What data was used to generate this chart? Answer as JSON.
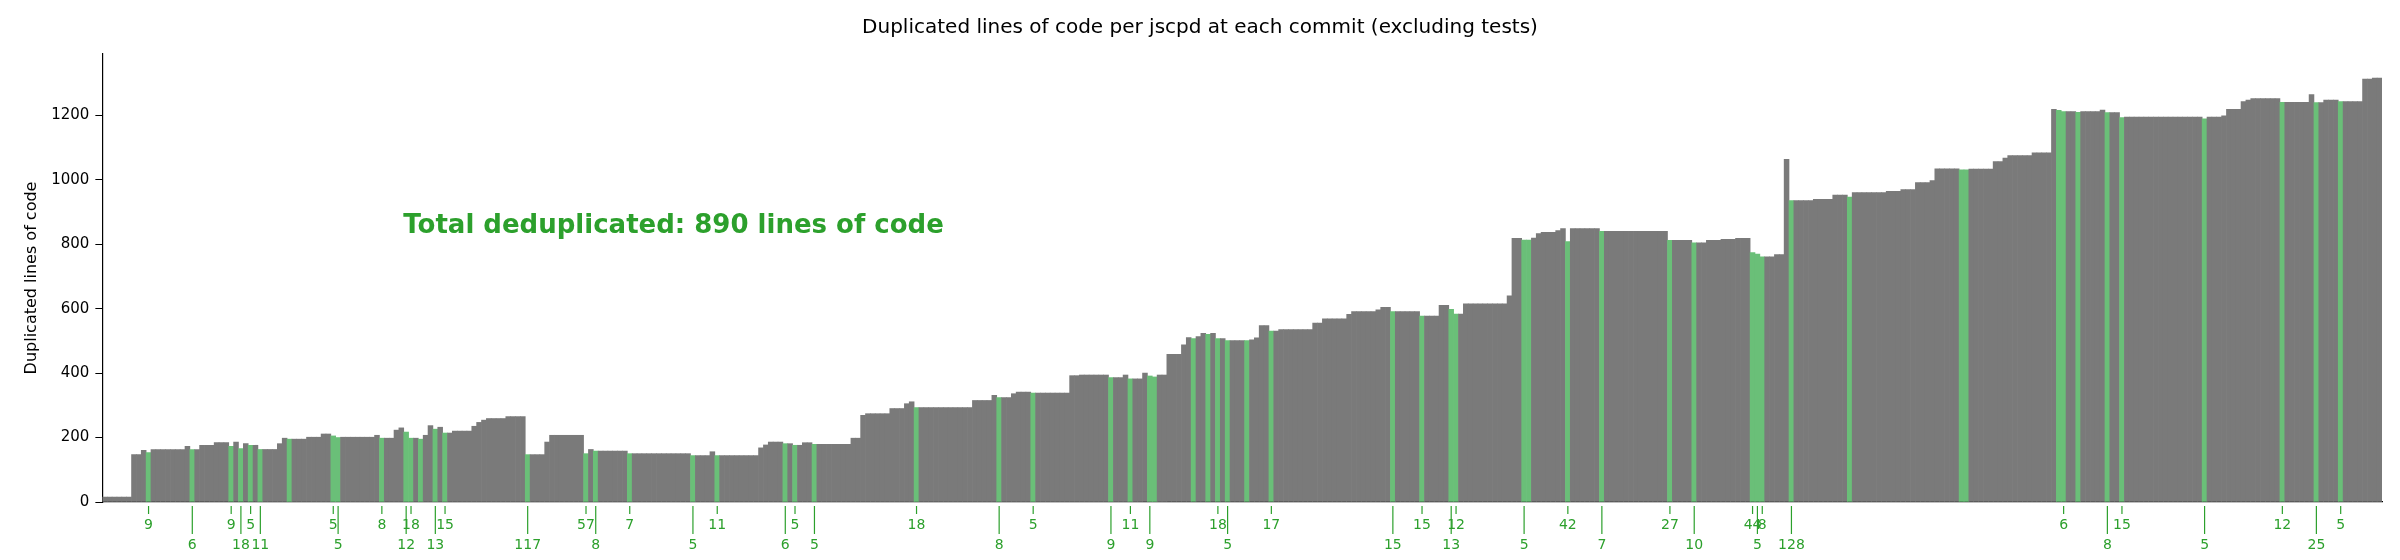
{
  "chart_data": {
    "type": "bar",
    "title": "Duplicated lines of code per jscpd at each commit (excluding tests)",
    "ylabel": "Duplicated lines of code",
    "ylim": [
      0,
      1390
    ],
    "yticks": [
      0,
      200,
      400,
      600,
      800,
      1000,
      1200
    ],
    "annotations": [
      "Total deduplicated: 890 lines of code"
    ],
    "categories": [
      null,
      null,
      null,
      null,
      null,
      null,
      null,
      null,
      null,
      "9",
      null,
      null,
      null,
      null,
      null,
      null,
      null,
      null,
      "6",
      null,
      null,
      null,
      null,
      null,
      null,
      null,
      "9",
      null,
      "18",
      null,
      "5",
      null,
      "11",
      null,
      null,
      null,
      null,
      null,
      null,
      null,
      null,
      null,
      null,
      null,
      null,
      null,
      null,
      "5",
      "5",
      null,
      null,
      null,
      null,
      null,
      null,
      null,
      null,
      "8",
      null,
      null,
      null,
      null,
      "12",
      "18",
      null,
      null,
      null,
      null,
      "13",
      null,
      "15",
      null,
      null,
      null,
      null,
      null,
      null,
      null,
      null,
      null,
      null,
      null,
      null,
      null,
      null,
      null,
      null,
      "117",
      null,
      null,
      null,
      null,
      null,
      null,
      null,
      null,
      null,
      null,
      null,
      "57",
      null,
      "8",
      null,
      null,
      null,
      null,
      null,
      null,
      "7",
      null,
      null,
      null,
      null,
      null,
      null,
      null,
      null,
      null,
      null,
      null,
      null,
      "5",
      null,
      null,
      null,
      null,
      "11",
      null,
      null,
      null,
      null,
      null,
      null,
      null,
      null,
      null,
      null,
      null,
      null,
      null,
      "6",
      null,
      "5",
      null,
      null,
      null,
      "5",
      null,
      null,
      null,
      null,
      null,
      null,
      null,
      null,
      null,
      null,
      null,
      null,
      null,
      null,
      null,
      null,
      null,
      null,
      null,
      null,
      "18",
      null,
      null,
      null,
      null,
      null,
      null,
      null,
      null,
      null,
      null,
      null,
      null,
      null,
      null,
      null,
      null,
      "8",
      null,
      null,
      null,
      null,
      null,
      null,
      "5",
      null,
      null,
      null,
      null,
      null,
      null,
      null,
      null,
      null,
      null,
      null,
      null,
      null,
      null,
      null,
      "9",
      null,
      null,
      null,
      "11",
      null,
      null,
      null,
      "9",
      null,
      null,
      null,
      null,
      null,
      null,
      null,
      null,
      null,
      null,
      null,
      null,
      null,
      "18",
      null,
      "5",
      null,
      null,
      null,
      null,
      null,
      null,
      null,
      null,
      "17",
      null,
      null,
      null,
      null,
      null,
      null,
      null,
      null,
      null,
      null,
      null,
      null,
      null,
      null,
      null,
      null,
      null,
      null,
      null,
      null,
      null,
      null,
      null,
      null,
      "15",
      null,
      null,
      null,
      null,
      null,
      "15",
      null,
      null,
      null,
      null,
      null,
      "13",
      "12",
      null,
      null,
      null,
      null,
      null,
      null,
      null,
      null,
      null,
      null,
      null,
      null,
      null,
      "5",
      null,
      null,
      null,
      null,
      null,
      null,
      null,
      null,
      "42",
      null,
      null,
      null,
      null,
      null,
      null,
      "7",
      null,
      null,
      null,
      null,
      null,
      null,
      null,
      null,
      null,
      null,
      null,
      null,
      null,
      "27",
      null,
      null,
      null,
      null,
      "10",
      null,
      null,
      null,
      null,
      null,
      null,
      null,
      null,
      null,
      null,
      null,
      "44",
      "5",
      "8",
      null,
      null,
      null,
      null,
      null,
      "128",
      null,
      null,
      null,
      null,
      null,
      null,
      null,
      null,
      null,
      null,
      null,
      null,
      null,
      null,
      null,
      null,
      null,
      null,
      null,
      null,
      null,
      null,
      null,
      null,
      null,
      null,
      null,
      null,
      null,
      null,
      null,
      null,
      null,
      null,
      null,
      null,
      null,
      null,
      null,
      null,
      null,
      null,
      null,
      null,
      null,
      null,
      null,
      null,
      null,
      null,
      null,
      null,
      null,
      null,
      null,
      "6",
      null,
      null,
      null,
      null,
      null,
      null,
      null,
      null,
      "8",
      null,
      null,
      "15",
      null,
      null,
      null,
      null,
      null,
      null,
      null,
      null,
      null,
      null,
      null,
      null,
      null,
      null,
      null,
      null,
      "5",
      null,
      null,
      null,
      null,
      null,
      null,
      null,
      null,
      null,
      null,
      null,
      null,
      null,
      null,
      null,
      "12",
      null,
      null,
      null,
      null,
      null,
      null,
      "25",
      null,
      null,
      null,
      null,
      "5",
      null,
      null,
      null,
      null,
      null,
      null,
      null,
      null
    ],
    "values": [
      15,
      15,
      15,
      15,
      15,
      15,
      147,
      147,
      160,
      153,
      163,
      163,
      163,
      163,
      163,
      163,
      163,
      173,
      163,
      163,
      176,
      176,
      176,
      184,
      184,
      184,
      173,
      186,
      166,
      181,
      176,
      176,
      163,
      163,
      163,
      163,
      181,
      198,
      195,
      195,
      195,
      195,
      201,
      201,
      201,
      211,
      211,
      205,
      200,
      201,
      201,
      201,
      201,
      201,
      201,
      201,
      207,
      198,
      198,
      198,
      223,
      230,
      217,
      198,
      198,
      195,
      207,
      237,
      226,
      232,
      214,
      214,
      220,
      220,
      220,
      220,
      235,
      247,
      254,
      259,
      259,
      259,
      259,
      265,
      265,
      265,
      265,
      147,
      147,
      147,
      147,
      186,
      207,
      207,
      207,
      207,
      207,
      207,
      207,
      150,
      163,
      158,
      158,
      158,
      158,
      158,
      158,
      158,
      150,
      150,
      150,
      150,
      150,
      150,
      150,
      150,
      150,
      150,
      150,
      150,
      150,
      144,
      144,
      144,
      144,
      156,
      144,
      144,
      144,
      144,
      144,
      144,
      144,
      144,
      144,
      168,
      177,
      186,
      186,
      186,
      181,
      181,
      176,
      176,
      184,
      184,
      179,
      179,
      179,
      179,
      179,
      179,
      179,
      179,
      198,
      198,
      269,
      274,
      274,
      274,
      274,
      274,
      290,
      290,
      290,
      305,
      311,
      293,
      293,
      293,
      293,
      293,
      293,
      293,
      293,
      293,
      293,
      293,
      293,
      315,
      315,
      315,
      315,
      331,
      324,
      324,
      324,
      336,
      341,
      341,
      341,
      338,
      338,
      338,
      338,
      338,
      338,
      338,
      338,
      392,
      392,
      394,
      394,
      394,
      394,
      394,
      394,
      386,
      386,
      386,
      394,
      382,
      382,
      382,
      400,
      391,
      388,
      394,
      394,
      458,
      458,
      458,
      488,
      510,
      507,
      513,
      523,
      520,
      523,
      507,
      507,
      501,
      501,
      501,
      501,
      501,
      503,
      509,
      547,
      547,
      530,
      530,
      535,
      535,
      535,
      535,
      535,
      535,
      535,
      555,
      555,
      568,
      568,
      568,
      568,
      568,
      582,
      591,
      591,
      591,
      591,
      591,
      596,
      604,
      604,
      591,
      591,
      591,
      591,
      591,
      591,
      577,
      577,
      577,
      577,
      610,
      610,
      598,
      583,
      583,
      615,
      615,
      615,
      615,
      615,
      615,
      615,
      615,
      615,
      640,
      818,
      818,
      813,
      813,
      819,
      833,
      837,
      837,
      837,
      842,
      848,
      808,
      848,
      848,
      848,
      848,
      848,
      848,
      840,
      840,
      840,
      840,
      840,
      840,
      840,
      840,
      840,
      840,
      840,
      840,
      840,
      840,
      812,
      812,
      812,
      812,
      812,
      804,
      804,
      804,
      812,
      812,
      812,
      815,
      815,
      815,
      818,
      818,
      818,
      774,
      769,
      761,
      761,
      761,
      768,
      768,
      1063,
      935,
      935,
      935,
      935,
      935,
      939,
      939,
      939,
      939,
      952,
      952,
      952,
      946,
      960,
      960,
      960,
      960,
      960,
      960,
      960,
      964,
      964,
      964,
      969,
      969,
      969,
      991,
      991,
      991,
      997,
      1034,
      1034,
      1034,
      1034,
      1034,
      1031,
      1031,
      1033,
      1033,
      1033,
      1033,
      1033,
      1056,
      1056,
      1067,
      1075,
      1075,
      1075,
      1075,
      1075,
      1083,
      1083,
      1083,
      1083,
      1218,
      1215,
      1211,
      1211,
      1211,
      1209,
      1211,
      1211,
      1211,
      1211,
      1216,
      1208,
      1208,
      1208,
      1193,
      1194,
      1194,
      1194,
      1194,
      1194,
      1194,
      1194,
      1194,
      1194,
      1194,
      1194,
      1194,
      1194,
      1194,
      1194,
      1194,
      1189,
      1194,
      1194,
      1194,
      1198,
      1218,
      1218,
      1218,
      1242,
      1247,
      1252,
      1252,
      1252,
      1252,
      1252,
      1252,
      1240,
      1240,
      1240,
      1240,
      1240,
      1240,
      1264,
      1239,
      1239,
      1247,
      1247,
      1247,
      1242,
      1242,
      1242,
      1242,
      1242,
      1312,
      1312,
      1315,
      1315
    ],
    "colors": [
      "#7a7a7a",
      "#7a7a7a",
      "#7a7a7a",
      "#7a7a7a",
      "#7a7a7a",
      "#7a7a7a",
      "#7a7a7a",
      "#7a7a7a",
      "#7a7a7a",
      "#6abf78",
      "#7a7a7a",
      "#7a7a7a",
      "#7a7a7a",
      "#7a7a7a",
      "#7a7a7a",
      "#7a7a7a",
      "#7a7a7a",
      "#7a7a7a",
      "#6abf78",
      "#7a7a7a",
      "#7a7a7a",
      "#7a7a7a",
      "#7a7a7a",
      "#7a7a7a",
      "#7a7a7a",
      "#7a7a7a",
      "#6abf78",
      "#7a7a7a",
      "#6abf78",
      "#7a7a7a",
      "#6abf78",
      "#7a7a7a",
      "#6abf78",
      "#7a7a7a",
      "#7a7a7a",
      "#7a7a7a",
      "#7a7a7a",
      "#7a7a7a",
      "#6abf78",
      "#7a7a7a",
      "#7a7a7a",
      "#7a7a7a",
      "#7a7a7a",
      "#7a7a7a",
      "#7a7a7a",
      "#7a7a7a",
      "#7a7a7a",
      "#6abf78",
      "#6abf78",
      "#7a7a7a",
      "#7a7a7a",
      "#7a7a7a",
      "#7a7a7a",
      "#7a7a7a",
      "#7a7a7a",
      "#7a7a7a",
      "#7a7a7a",
      "#6abf78",
      "#7a7a7a",
      "#7a7a7a",
      "#7a7a7a",
      "#7a7a7a",
      "#6abf78",
      "#6abf78",
      "#7a7a7a",
      "#6abf78",
      "#7a7a7a",
      "#7a7a7a",
      "#6abf78",
      "#7a7a7a",
      "#6abf78",
      "#7a7a7a",
      "#7a7a7a",
      "#7a7a7a",
      "#7a7a7a",
      "#7a7a7a",
      "#7a7a7a",
      "#7a7a7a",
      "#7a7a7a",
      "#7a7a7a",
      "#7a7a7a",
      "#7a7a7a",
      "#7a7a7a",
      "#7a7a7a",
      "#7a7a7a",
      "#7a7a7a",
      "#7a7a7a",
      "#6abf78",
      "#7a7a7a",
      "#7a7a7a",
      "#7a7a7a",
      "#7a7a7a",
      "#7a7a7a",
      "#7a7a7a",
      "#7a7a7a",
      "#7a7a7a",
      "#7a7a7a",
      "#7a7a7a",
      "#7a7a7a",
      "#6abf78",
      "#7a7a7a",
      "#6abf78",
      "#7a7a7a",
      "#7a7a7a",
      "#7a7a7a",
      "#7a7a7a",
      "#7a7a7a",
      "#7a7a7a",
      "#6abf78",
      "#7a7a7a",
      "#7a7a7a",
      "#7a7a7a",
      "#7a7a7a",
      "#7a7a7a",
      "#7a7a7a",
      "#7a7a7a",
      "#7a7a7a",
      "#7a7a7a",
      "#7a7a7a",
      "#7a7a7a",
      "#7a7a7a",
      "#6abf78",
      "#7a7a7a",
      "#7a7a7a",
      "#7a7a7a",
      "#7a7a7a",
      "#6abf78",
      "#7a7a7a",
      "#7a7a7a",
      "#7a7a7a",
      "#7a7a7a",
      "#7a7a7a",
      "#7a7a7a",
      "#7a7a7a",
      "#7a7a7a",
      "#7a7a7a",
      "#7a7a7a",
      "#7a7a7a",
      "#7a7a7a",
      "#7a7a7a",
      "#6abf78",
      "#7a7a7a",
      "#6abf78",
      "#7a7a7a",
      "#7a7a7a",
      "#7a7a7a",
      "#6abf78",
      "#7a7a7a",
      "#7a7a7a",
      "#7a7a7a",
      "#7a7a7a",
      "#7a7a7a",
      "#7a7a7a",
      "#7a7a7a",
      "#7a7a7a",
      "#7a7a7a",
      "#7a7a7a",
      "#7a7a7a",
      "#7a7a7a",
      "#7a7a7a",
      "#7a7a7a",
      "#7a7a7a",
      "#7a7a7a",
      "#7a7a7a",
      "#7a7a7a",
      "#7a7a7a",
      "#7a7a7a",
      "#6abf78",
      "#7a7a7a",
      "#7a7a7a",
      "#7a7a7a",
      "#7a7a7a",
      "#7a7a7a",
      "#7a7a7a",
      "#7a7a7a",
      "#7a7a7a",
      "#7a7a7a",
      "#7a7a7a",
      "#7a7a7a",
      "#7a7a7a",
      "#7a7a7a",
      "#7a7a7a",
      "#7a7a7a",
      "#7a7a7a",
      "#6abf78",
      "#7a7a7a",
      "#7a7a7a",
      "#7a7a7a",
      "#7a7a7a",
      "#7a7a7a",
      "#7a7a7a",
      "#6abf78",
      "#7a7a7a",
      "#7a7a7a",
      "#7a7a7a",
      "#7a7a7a",
      "#7a7a7a",
      "#7a7a7a",
      "#7a7a7a",
      "#7a7a7a",
      "#7a7a7a",
      "#7a7a7a",
      "#7a7a7a",
      "#7a7a7a",
      "#7a7a7a",
      "#7a7a7a",
      "#7a7a7a",
      "#6abf78",
      "#7a7a7a",
      "#7a7a7a",
      "#7a7a7a",
      "#6abf78",
      "#7a7a7a",
      "#7a7a7a",
      "#7a7a7a",
      "#6abf78",
      "#6abf78",
      "#7a7a7a",
      "#7a7a7a",
      "#7a7a7a",
      "#7a7a7a",
      "#7a7a7a",
      "#7a7a7a",
      "#7a7a7a",
      "#6abf78",
      "#7a7a7a",
      "#7a7a7a",
      "#6abf78",
      "#7a7a7a",
      "#6abf78",
      "#7a7a7a",
      "#6abf78",
      "#7a7a7a",
      "#7a7a7a",
      "#7a7a7a",
      "#6abf78",
      "#7a7a7a",
      "#7a7a7a",
      "#7a7a7a",
      "#7a7a7a",
      "#6abf78",
      "#7a7a7a",
      "#7a7a7a",
      "#7a7a7a",
      "#7a7a7a",
      "#7a7a7a",
      "#7a7a7a",
      "#7a7a7a",
      "#7a7a7a",
      "#7a7a7a",
      "#7a7a7a",
      "#7a7a7a",
      "#7a7a7a",
      "#7a7a7a",
      "#7a7a7a",
      "#7a7a7a",
      "#7a7a7a",
      "#7a7a7a",
      "#7a7a7a",
      "#7a7a7a",
      "#7a7a7a",
      "#7a7a7a",
      "#7a7a7a",
      "#7a7a7a",
      "#7a7a7a",
      "#6abf78",
      "#7a7a7a",
      "#7a7a7a",
      "#7a7a7a",
      "#7a7a7a",
      "#7a7a7a",
      "#6abf78",
      "#7a7a7a",
      "#7a7a7a",
      "#7a7a7a",
      "#7a7a7a",
      "#7a7a7a",
      "#6abf78",
      "#6abf78",
      "#7a7a7a",
      "#7a7a7a",
      "#7a7a7a",
      "#7a7a7a",
      "#7a7a7a",
      "#7a7a7a",
      "#7a7a7a",
      "#7a7a7a",
      "#7a7a7a",
      "#7a7a7a",
      "#7a7a7a",
      "#7a7a7a",
      "#7a7a7a",
      "#6abf78",
      "#6abf78",
      "#7a7a7a",
      "#7a7a7a",
      "#7a7a7a",
      "#7a7a7a",
      "#7a7a7a",
      "#7a7a7a",
      "#7a7a7a",
      "#6abf78",
      "#7a7a7a",
      "#7a7a7a",
      "#7a7a7a",
      "#7a7a7a",
      "#7a7a7a",
      "#7a7a7a",
      "#6abf78",
      "#7a7a7a",
      "#7a7a7a",
      "#7a7a7a",
      "#7a7a7a",
      "#7a7a7a",
      "#7a7a7a",
      "#7a7a7a",
      "#7a7a7a",
      "#7a7a7a",
      "#7a7a7a",
      "#7a7a7a",
      "#7a7a7a",
      "#7a7a7a",
      "#6abf78",
      "#7a7a7a",
      "#7a7a7a",
      "#7a7a7a",
      "#7a7a7a",
      "#6abf78",
      "#7a7a7a",
      "#7a7a7a",
      "#7a7a7a",
      "#7a7a7a",
      "#7a7a7a",
      "#7a7a7a",
      "#7a7a7a",
      "#7a7a7a",
      "#7a7a7a",
      "#7a7a7a",
      "#7a7a7a",
      "#6abf78",
      "#6abf78",
      "#6abf78",
      "#7a7a7a",
      "#7a7a7a",
      "#7a7a7a",
      "#7a7a7a",
      "#7a7a7a",
      "#6abf78",
      "#7a7a7a",
      "#7a7a7a",
      "#7a7a7a",
      "#7a7a7a",
      "#7a7a7a",
      "#7a7a7a",
      "#7a7a7a",
      "#7a7a7a",
      "#7a7a7a",
      "#7a7a7a",
      "#7a7a7a",
      "#6abf78",
      "#7a7a7a",
      "#7a7a7a",
      "#7a7a7a",
      "#7a7a7a",
      "#7a7a7a",
      "#7a7a7a",
      "#7a7a7a",
      "#7a7a7a",
      "#7a7a7a",
      "#7a7a7a",
      "#7a7a7a",
      "#7a7a7a",
      "#7a7a7a",
      "#7a7a7a",
      "#7a7a7a",
      "#7a7a7a",
      "#7a7a7a",
      "#7a7a7a",
      "#7a7a7a",
      "#7a7a7a",
      "#7a7a7a",
      "#7a7a7a",
      "#6abf78",
      "#6abf78",
      "#7a7a7a",
      "#7a7a7a",
      "#7a7a7a",
      "#7a7a7a",
      "#7a7a7a",
      "#7a7a7a",
      "#7a7a7a",
      "#7a7a7a",
      "#7a7a7a",
      "#7a7a7a",
      "#7a7a7a",
      "#7a7a7a",
      "#7a7a7a",
      "#7a7a7a",
      "#7a7a7a",
      "#7a7a7a",
      "#7a7a7a",
      "#7a7a7a",
      "#6abf78",
      "#6abf78",
      "#7a7a7a",
      "#7a7a7a",
      "#6abf78",
      "#7a7a7a",
      "#7a7a7a",
      "#7a7a7a",
      "#7a7a7a",
      "#7a7a7a",
      "#6abf78",
      "#7a7a7a",
      "#7a7a7a",
      "#6abf78",
      "#7a7a7a",
      "#7a7a7a",
      "#7a7a7a",
      "#7a7a7a",
      "#7a7a7a",
      "#7a7a7a",
      "#7a7a7a",
      "#7a7a7a",
      "#7a7a7a",
      "#7a7a7a",
      "#7a7a7a",
      "#7a7a7a",
      "#7a7a7a",
      "#7a7a7a",
      "#7a7a7a",
      "#7a7a7a",
      "#6abf78",
      "#7a7a7a",
      "#7a7a7a",
      "#7a7a7a",
      "#7a7a7a",
      "#7a7a7a",
      "#7a7a7a",
      "#7a7a7a",
      "#7a7a7a",
      "#7a7a7a",
      "#7a7a7a",
      "#7a7a7a",
      "#7a7a7a",
      "#7a7a7a",
      "#7a7a7a",
      "#7a7a7a",
      "#6abf78",
      "#7a7a7a",
      "#7a7a7a",
      "#7a7a7a",
      "#7a7a7a",
      "#7a7a7a",
      "#7a7a7a",
      "#6abf78",
      "#7a7a7a",
      "#7a7a7a",
      "#7a7a7a",
      "#7a7a7a",
      "#6abf78",
      "#7a7a7a",
      "#7a7a7a",
      "#7a7a7a",
      "#7a7a7a",
      "#7a7a7a",
      "#7a7a7a",
      "#7a7a7a",
      "#7a7a7a"
    ]
  }
}
